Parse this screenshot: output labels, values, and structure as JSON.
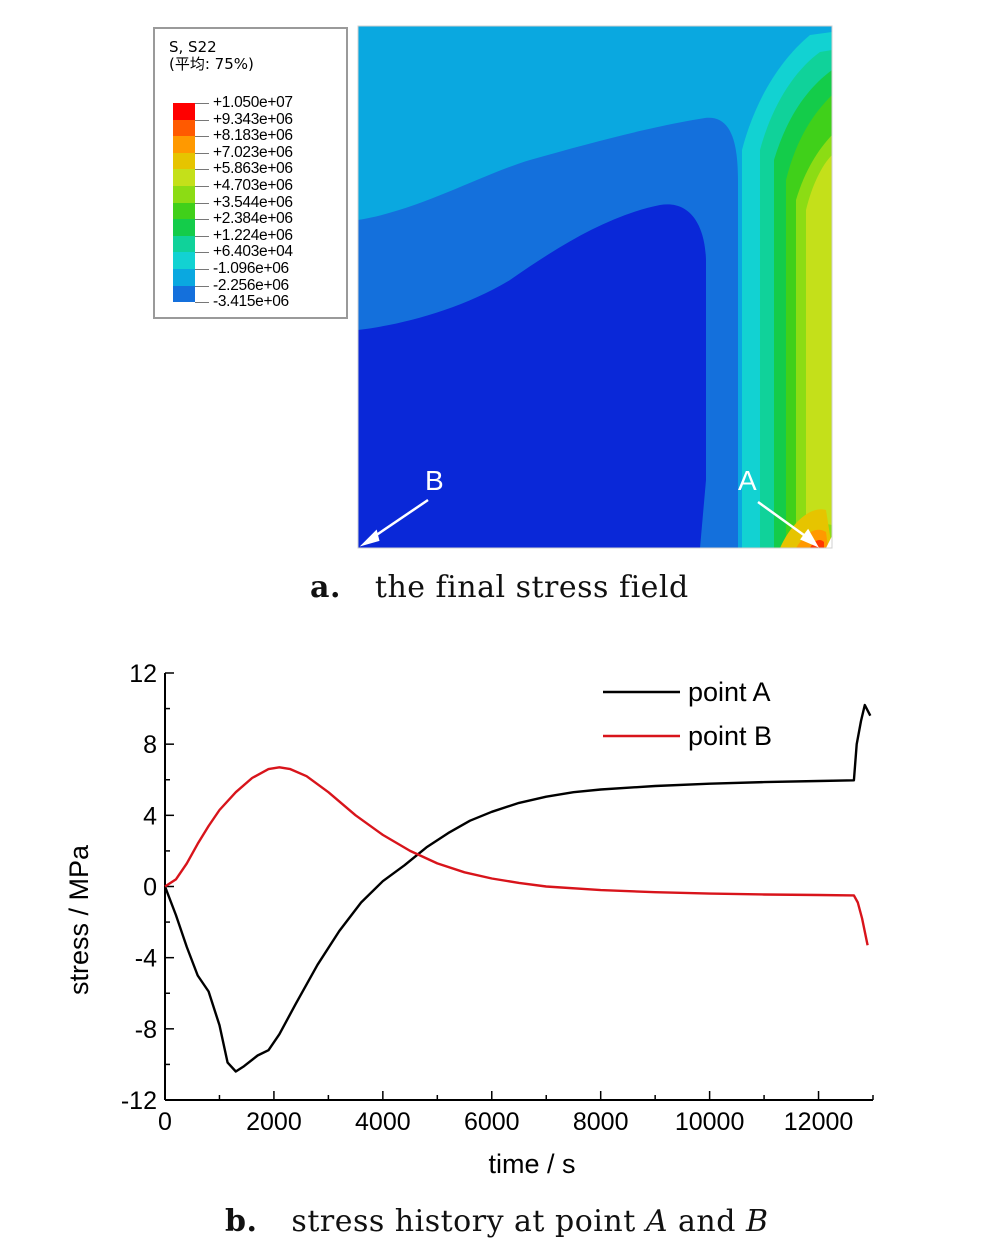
{
  "panel_a": {
    "legend": {
      "title_line1": "S, S22",
      "title_line2": "(平均: 75%)",
      "entries": [
        {
          "label": "+1.050e+07",
          "color": "#ff0000"
        },
        {
          "label": "+9.343e+06",
          "color": "#ff5a00"
        },
        {
          "label": "+8.183e+06",
          "color": "#ff9900"
        },
        {
          "label": "+7.023e+06",
          "color": "#e6c400"
        },
        {
          "label": "+5.863e+06",
          "color": "#c4e01a"
        },
        {
          "label": "+4.703e+06",
          "color": "#8cdc14"
        },
        {
          "label": "+3.544e+06",
          "color": "#40d01a"
        },
        {
          "label": "+2.384e+06",
          "color": "#14cc4a"
        },
        {
          "label": "+1.224e+06",
          "color": "#10d29a"
        },
        {
          "label": "+6.403e+04",
          "color": "#12d2d2"
        },
        {
          "label": "-1.096e+06",
          "color": "#0aa8e0"
        },
        {
          "label": "-2.256e+06",
          "color": "#1470dc"
        },
        {
          "label": "-3.415e+06",
          "color": "#0a28d8"
        }
      ]
    },
    "point_labels": {
      "a": "A",
      "b": "B"
    },
    "caption": {
      "letter": "a.",
      "text": "the final stress field"
    }
  },
  "panel_b": {
    "caption": {
      "letter": "b.",
      "text_before": "stress history at point ",
      "a": "A",
      "and": " and ",
      "b": "B"
    }
  },
  "chart_data": {
    "type": "line",
    "xlabel": "time / s",
    "ylabel": "stress / MPa",
    "xlim": [
      0,
      13000
    ],
    "ylim": [
      -12,
      12
    ],
    "xticks": [
      0,
      2000,
      4000,
      6000,
      8000,
      10000,
      12000
    ],
    "yticks": [
      12,
      8,
      4,
      0,
      -4,
      -8,
      -12
    ],
    "legend_position": "top-right",
    "grid": false,
    "series": [
      {
        "name": "point A",
        "color": "#000000",
        "points": [
          [
            0,
            0
          ],
          [
            200,
            -1.6
          ],
          [
            400,
            -3.4
          ],
          [
            600,
            -5
          ],
          [
            800,
            -5.9
          ],
          [
            1000,
            -7.8
          ],
          [
            1150,
            -9.9
          ],
          [
            1300,
            -10.4
          ],
          [
            1450,
            -10.1
          ],
          [
            1700,
            -9.5
          ],
          [
            1900,
            -9.2
          ],
          [
            2100,
            -8.3
          ],
          [
            2400,
            -6.6
          ],
          [
            2800,
            -4.4
          ],
          [
            3200,
            -2.5
          ],
          [
            3600,
            -0.9
          ],
          [
            4000,
            0.3
          ],
          [
            4400,
            1.2
          ],
          [
            4800,
            2.2
          ],
          [
            5200,
            3
          ],
          [
            5600,
            3.7
          ],
          [
            6000,
            4.2
          ],
          [
            6500,
            4.7
          ],
          [
            7000,
            5.05
          ],
          [
            7500,
            5.3
          ],
          [
            8000,
            5.45
          ],
          [
            9000,
            5.65
          ],
          [
            10000,
            5.78
          ],
          [
            11000,
            5.87
          ],
          [
            12000,
            5.93
          ],
          [
            12650,
            5.97
          ],
          [
            12700,
            8
          ],
          [
            12780,
            9.3
          ],
          [
            12850,
            10.2
          ],
          [
            12950,
            9.6
          ]
        ]
      },
      {
        "name": "point B",
        "color": "#d8141b",
        "points": [
          [
            0,
            0
          ],
          [
            200,
            0.4
          ],
          [
            400,
            1.3
          ],
          [
            600,
            2.4
          ],
          [
            800,
            3.4
          ],
          [
            1000,
            4.3
          ],
          [
            1300,
            5.3
          ],
          [
            1600,
            6.1
          ],
          [
            1900,
            6.6
          ],
          [
            2100,
            6.7
          ],
          [
            2300,
            6.6
          ],
          [
            2600,
            6.2
          ],
          [
            3000,
            5.3
          ],
          [
            3500,
            4
          ],
          [
            4000,
            2.9
          ],
          [
            4500,
            2
          ],
          [
            5000,
            1.3
          ],
          [
            5500,
            0.8
          ],
          [
            6000,
            0.45
          ],
          [
            6500,
            0.2
          ],
          [
            7000,
            0
          ],
          [
            8000,
            -0.2
          ],
          [
            9000,
            -0.32
          ],
          [
            10000,
            -0.4
          ],
          [
            11000,
            -0.45
          ],
          [
            12000,
            -0.48
          ],
          [
            12650,
            -0.5
          ],
          [
            12720,
            -0.9
          ],
          [
            12800,
            -1.8
          ],
          [
            12900,
            -3.3
          ]
        ]
      }
    ]
  }
}
